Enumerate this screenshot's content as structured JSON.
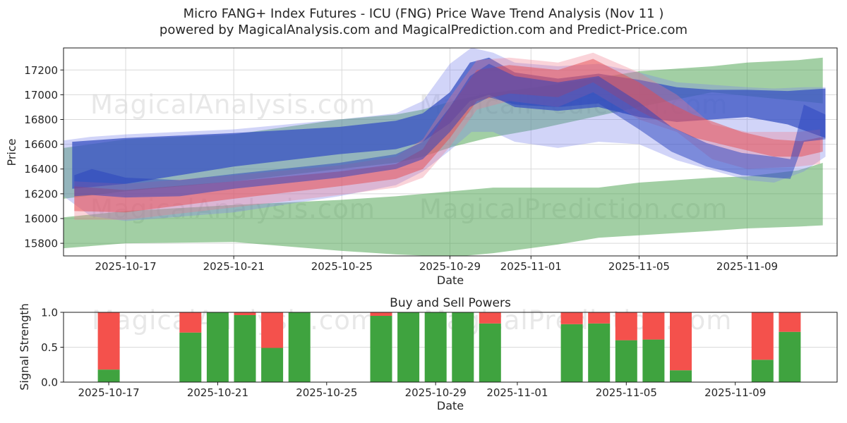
{
  "title": {
    "line1": "Micro FANG+ Index Futures - ICU (FNG) Price Wave Trend Analysis (Nov 11 )",
    "line2": "powered by MagicalAnalysis.com and MagicalPrediction.com and Predict-Price.com"
  },
  "watermarks": {
    "analysis": "MagicalAnalysis.com",
    "prediction": "MagicalPrediction.com"
  },
  "colors": {
    "buy_green": "#3fa33f",
    "sell_red": "#f4514c",
    "band_green": "rgba(70,160,73,0.5)",
    "band_lavender": "rgba(123,132,235,0.35)",
    "band_blue": "rgba(55,82,195,0.75)",
    "band_pink": "rgba(240,120,140,0.33)",
    "band_red": "rgba(230,75,80,0.5)",
    "band_royal": "rgba(40,65,190,0.5)",
    "grid": "#d9d9d9",
    "spine": "#1a1a1a",
    "text": "#262626",
    "watermark": "#e8e8e8"
  },
  "chart_data": {
    "price_chart": {
      "type": "area",
      "title": "",
      "xlabel": "Date",
      "ylabel": "Price",
      "grid": true,
      "ylim": [
        15698,
        17378
      ],
      "xlim_days": [
        -2.3,
        26.33
      ],
      "day_zero_date": "2025-10-17",
      "yticks": [
        {
          "value": 17200,
          "label": "17200"
        },
        {
          "value": 17000,
          "label": "17000"
        },
        {
          "value": 16800,
          "label": "16800"
        },
        {
          "value": 16600,
          "label": "16600"
        },
        {
          "value": 16400,
          "label": "16400"
        },
        {
          "value": 16200,
          "label": "16200"
        },
        {
          "value": 16000,
          "label": "16000"
        },
        {
          "value": 15800,
          "label": "15800"
        }
      ],
      "xticks": [
        {
          "day": 0,
          "label": "2025-10-17"
        },
        {
          "day": 4,
          "label": "2025-10-21"
        },
        {
          "day": 8,
          "label": "2025-10-25"
        },
        {
          "day": 12,
          "label": "2025-10-29"
        },
        {
          "day": 15,
          "label": "2025-11-01"
        },
        {
          "day": 19,
          "label": "2025-11-05"
        },
        {
          "day": 23,
          "label": "2025-11-09"
        }
      ],
      "bands": [
        {
          "name": "upper-green-envelope",
          "color_key": "band_green",
          "points": [
            [
              -2.3,
              16570,
              16160
            ],
            [
              0,
              16640,
              16220
            ],
            [
              4,
              16680,
              16300
            ],
            [
              7.9,
              16800,
              16400
            ],
            [
              10,
              16840,
              16450
            ],
            [
              11,
              16880,
              16500
            ],
            [
              12.1,
              16950,
              16580
            ],
            [
              13.4,
              17010,
              16650
            ],
            [
              15.2,
              17060,
              16720
            ],
            [
              17.3,
              17130,
              16820
            ],
            [
              19,
              17190,
              16900
            ],
            [
              21.7,
              17230,
              17020
            ],
            [
              23,
              17260,
              16990
            ],
            [
              24.9,
              17280,
              16950
            ],
            [
              25.8,
              17300,
              16930
            ]
          ]
        },
        {
          "name": "lower-green-envelope",
          "color_key": "band_green",
          "points": [
            [
              -2.3,
              16010,
              15760
            ],
            [
              0,
              16060,
              15800
            ],
            [
              4,
              16110,
              15810
            ],
            [
              7.9,
              16150,
              15740
            ],
            [
              10,
              16180,
              15710
            ],
            [
              12.1,
              16220,
              15690
            ],
            [
              13.6,
              16250,
              15720
            ],
            [
              16,
              16250,
              15790
            ],
            [
              17.5,
              16250,
              15845
            ],
            [
              19,
              16290,
              15865
            ],
            [
              21.7,
              16330,
              15900
            ],
            [
              23,
              16340,
              15920
            ],
            [
              24.9,
              16390,
              15935
            ],
            [
              25.8,
              16450,
              15945
            ]
          ]
        },
        {
          "name": "outer-blue-fringe",
          "color_key": "band_lavender",
          "points": [
            [
              -2.3,
              16630,
              16180
            ],
            [
              -1.3,
              16660,
              16020
            ],
            [
              0,
              16680,
              15980
            ],
            [
              4,
              16720,
              16050
            ],
            [
              7.9,
              16800,
              16180
            ],
            [
              10,
              16850,
              16270
            ],
            [
              11,
              16950,
              16380
            ],
            [
              12,
              17250,
              16550
            ],
            [
              12.8,
              17380,
              16700
            ],
            [
              13.6,
              17340,
              16700
            ],
            [
              14.4,
              17260,
              16620
            ],
            [
              16,
              17230,
              16570
            ],
            [
              17.5,
              17250,
              16620
            ],
            [
              19,
              17180,
              16600
            ],
            [
              20.4,
              17100,
              16470
            ],
            [
              21.7,
              17080,
              16390
            ],
            [
              23,
              17060,
              16310
            ],
            [
              24,
              17050,
              16290
            ],
            [
              25.1,
              17060,
              16380
            ],
            [
              25.9,
              17060,
              16500
            ]
          ]
        },
        {
          "name": "main-blue-band",
          "color_key": "band_blue",
          "points": [
            [
              -1.98,
              16620,
              16240
            ],
            [
              0,
              16650,
              16280
            ],
            [
              4,
              16690,
              16420
            ],
            [
              7.9,
              16740,
              16520
            ],
            [
              10,
              16790,
              16560
            ],
            [
              11,
              16850,
              16620
            ],
            [
              12,
              17020,
              16770
            ],
            [
              12.74,
              17260,
              16950
            ],
            [
              13.45,
              17300,
              17000
            ],
            [
              14.4,
              17180,
              16900
            ],
            [
              16,
              17130,
              16870
            ],
            [
              17.5,
              17170,
              16900
            ],
            [
              19,
              17120,
              16820
            ],
            [
              20.4,
              17060,
              16780
            ],
            [
              21.7,
              17040,
              16800
            ],
            [
              23,
              17040,
              16820
            ],
            [
              24.5,
              17030,
              16760
            ],
            [
              25.9,
              17050,
              16650
            ]
          ]
        },
        {
          "name": "outer-pink-fringe",
          "color_key": "band_pink",
          "points": [
            [
              -1.9,
              16300,
              15990
            ],
            [
              0,
              16280,
              15990
            ],
            [
              4,
              16350,
              16090
            ],
            [
              7.9,
              16430,
              16190
            ],
            [
              10,
              16500,
              16250
            ],
            [
              11,
              16640,
              16330
            ],
            [
              12,
              16980,
              16580
            ],
            [
              13,
              17280,
              16880
            ],
            [
              14.2,
              17300,
              16950
            ],
            [
              16,
              17260,
              16900
            ],
            [
              17.3,
              17340,
              17020
            ],
            [
              19,
              17180,
              16800
            ],
            [
              20.4,
              17000,
              16700
            ],
            [
              21.7,
              16760,
              16480
            ],
            [
              23,
              16700,
              16400
            ],
            [
              24.9,
              16700,
              16420
            ],
            [
              25.7,
              16720,
              16440
            ]
          ]
        },
        {
          "name": "red-wave-band",
          "color_key": "band_red",
          "points": [
            [
              -1.9,
              16260,
              16060
            ],
            [
              0,
              16230,
              16050
            ],
            [
              4,
              16300,
              16160
            ],
            [
              7.9,
              16380,
              16260
            ],
            [
              10,
              16440,
              16320
            ],
            [
              11,
              16560,
              16400
            ],
            [
              12,
              16900,
              16650
            ],
            [
              13,
              17200,
              16950
            ],
            [
              14.2,
              17240,
              17010
            ],
            [
              16,
              17200,
              16980
            ],
            [
              17.3,
              17290,
              17100
            ],
            [
              19,
              17100,
              16870
            ],
            [
              20,
              16950,
              16760
            ],
            [
              21,
              16840,
              16655
            ],
            [
              22.8,
              16700,
              16560
            ],
            [
              24,
              16640,
              16500
            ],
            [
              25,
              16625,
              16500
            ],
            [
              25.8,
              16660,
              16540
            ]
          ]
        },
        {
          "name": "inner-royal-wave",
          "color_key": "band_royal",
          "points": [
            [
              -1.9,
              16350,
              16180
            ],
            [
              -1.25,
              16400,
              16190
            ],
            [
              0,
              16330,
              16170
            ],
            [
              2,
              16310,
              16180
            ],
            [
              4,
              16360,
              16240
            ],
            [
              7.9,
              16450,
              16330
            ],
            [
              10,
              16520,
              16400
            ],
            [
              11,
              16620,
              16480
            ],
            [
              12,
              16900,
              16700
            ],
            [
              12.74,
              17150,
              16900
            ],
            [
              13.45,
              17250,
              16980
            ],
            [
              14.4,
              17150,
              16920
            ],
            [
              16,
              17100,
              16900
            ],
            [
              17.5,
              17150,
              16930
            ],
            [
              19,
              16940,
              16720
            ],
            [
              20.2,
              16740,
              16540
            ],
            [
              21.5,
              16610,
              16420
            ],
            [
              22.8,
              16530,
              16350
            ],
            [
              24,
              16500,
              16330
            ],
            [
              24.6,
              16480,
              16320
            ],
            [
              25.1,
              16920,
              16620
            ],
            [
              25.9,
              16840,
              16640
            ]
          ]
        }
      ]
    },
    "signal_chart": {
      "type": "bar",
      "title": "Buy and Sell Powers",
      "xlabel": "Date",
      "ylabel": "Signal Strength",
      "grid": true,
      "ylim": [
        0.0,
        1.0
      ],
      "xlim_days": [
        -1.66,
        26.74
      ],
      "day_zero_date": "2025-10-17",
      "yticks": [
        {
          "value": 1.0,
          "label": "1.0"
        },
        {
          "value": 0.5,
          "label": "0.5"
        },
        {
          "value": 0.0,
          "label": "0.0"
        }
      ],
      "xticks": [
        {
          "day": 0,
          "label": "2025-10-17"
        },
        {
          "day": 4,
          "label": "2025-10-21"
        },
        {
          "day": 8,
          "label": "2025-10-25"
        },
        {
          "day": 12,
          "label": "2025-10-29"
        },
        {
          "day": 15,
          "label": "2025-11-01"
        },
        {
          "day": 19,
          "label": "2025-11-05"
        },
        {
          "day": 23,
          "label": "2025-11-09"
        }
      ],
      "bars": [
        {
          "date": "2025-10-17",
          "day": 0,
          "buy": 0.18,
          "sell": 0.82
        },
        {
          "date": "2025-10-20",
          "day": 3,
          "buy": 0.71,
          "sell": 0.29
        },
        {
          "date": "2025-10-21",
          "day": 4,
          "buy": 1.0,
          "sell": 0.0
        },
        {
          "date": "2025-10-22",
          "day": 5,
          "buy": 0.96,
          "sell": 0.04
        },
        {
          "date": "2025-10-23",
          "day": 6,
          "buy": 0.49,
          "sell": 0.51
        },
        {
          "date": "2025-10-24",
          "day": 7,
          "buy": 1.0,
          "sell": 0.0
        },
        {
          "date": "2025-10-27",
          "day": 10,
          "buy": 0.95,
          "sell": 0.05
        },
        {
          "date": "2025-10-28",
          "day": 11,
          "buy": 1.0,
          "sell": 0.0
        },
        {
          "date": "2025-10-29",
          "day": 12,
          "buy": 1.0,
          "sell": 0.0
        },
        {
          "date": "2025-10-30",
          "day": 13,
          "buy": 1.0,
          "sell": 0.0
        },
        {
          "date": "2025-10-31",
          "day": 14,
          "buy": 0.84,
          "sell": 0.16
        },
        {
          "date": "2025-11-03",
          "day": 17,
          "buy": 0.83,
          "sell": 0.17
        },
        {
          "date": "2025-11-04",
          "day": 18,
          "buy": 0.84,
          "sell": 0.16
        },
        {
          "date": "2025-11-05",
          "day": 19,
          "buy": 0.6,
          "sell": 0.4
        },
        {
          "date": "2025-11-06",
          "day": 20,
          "buy": 0.61,
          "sell": 0.39
        },
        {
          "date": "2025-11-07",
          "day": 21,
          "buy": 0.17,
          "sell": 0.83
        },
        {
          "date": "2025-11-10",
          "day": 24,
          "buy": 0.32,
          "sell": 0.68
        },
        {
          "date": "2025-11-11",
          "day": 25,
          "buy": 0.72,
          "sell": 0.28
        }
      ]
    }
  }
}
